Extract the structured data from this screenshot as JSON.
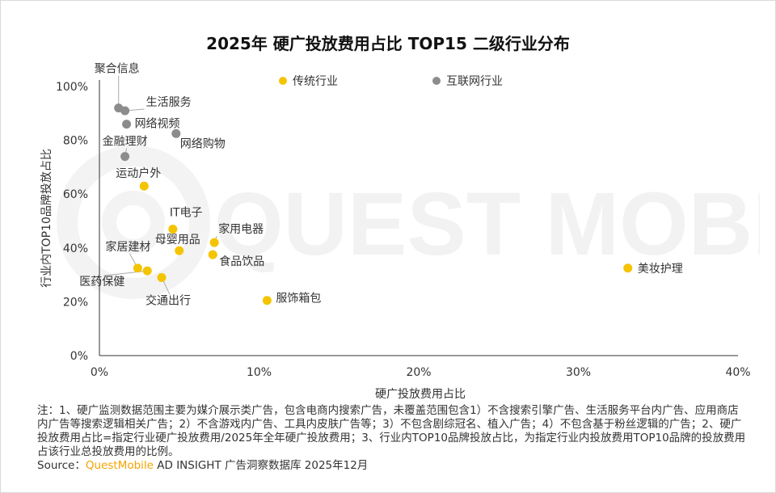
{
  "chart_data": {
    "type": "scatter",
    "title": "2025年 硬广投放费用占比 TOP15 二级行业分布",
    "xlabel": "硬广投放费用占比",
    "ylabel": "行业内TOP10品牌投放占比",
    "xlim": [
      0,
      40
    ],
    "ylim": [
      0,
      100
    ],
    "x_ticks": [
      "0%",
      "10%",
      "20%",
      "30%",
      "40%"
    ],
    "y_ticks": [
      "0%",
      "20%",
      "40%",
      "60%",
      "80%",
      "100%"
    ],
    "grid": false,
    "legend_position": "top",
    "series": [
      {
        "name": "传统行业",
        "color": "#f5c400",
        "points": [
          {
            "label": "运动户外",
            "x": 2.8,
            "y": 63
          },
          {
            "label": "IT电子",
            "x": 4.6,
            "y": 47
          },
          {
            "label": "家用电器",
            "x": 7.2,
            "y": 42
          },
          {
            "label": "母婴用品",
            "x": 5.0,
            "y": 39
          },
          {
            "label": "食品饮品",
            "x": 7.1,
            "y": 37.5
          },
          {
            "label": "家居建材",
            "x": 2.4,
            "y": 32.5
          },
          {
            "label": "医药保健",
            "x": 3.0,
            "y": 31.5
          },
          {
            "label": "交通出行",
            "x": 3.9,
            "y": 29
          },
          {
            "label": "服饰箱包",
            "x": 10.5,
            "y": 20.5
          },
          {
            "label": "美妆护理",
            "x": 33.1,
            "y": 32.5
          }
        ]
      },
      {
        "name": "互联网行业",
        "color": "#8c8c8c",
        "points": [
          {
            "label": "聚合信息",
            "x": 1.2,
            "y": 92
          },
          {
            "label": "生活服务",
            "x": 1.6,
            "y": 91
          },
          {
            "label": "网络视频",
            "x": 1.7,
            "y": 86
          },
          {
            "label": "网络购物",
            "x": 4.8,
            "y": 82.5
          },
          {
            "label": "金融理财",
            "x": 1.6,
            "y": 74
          }
        ]
      }
    ]
  },
  "watermark_text": "QUEST MOBILE",
  "footnote": "注：1、硬广监测数据范围主要为媒介展示类广告，包含电商内搜索广告，未覆盖范围包含1）不含搜索引擎广告、生活服务平台内广告、应用商店内广告等搜索逻辑相关广告；2）不含游戏内广告、工具内皮肤广告等；3）不包含剧综冠名、植入广告；4）不包含基于粉丝逻辑的广告；2、硬广投放费用占比=指定行业硬广投放费用/2025年全年硬广投放费用；3、行业内TOP10品牌投放占比，为指定行业内投放费用TOP10品牌的投放费用占该行业总投放费用的比例。",
  "source": {
    "prefix": "Source：",
    "brand": "QuestMobile",
    "rest": " AD INSIGHT 广告洞察数据库 2025年12月"
  }
}
